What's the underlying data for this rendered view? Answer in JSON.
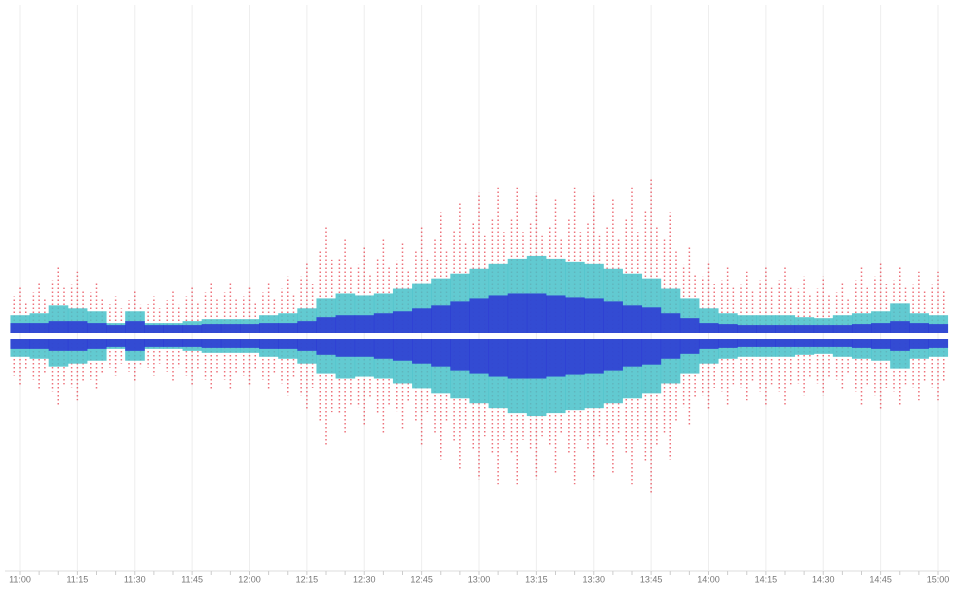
{
  "chart_data": {
    "type": "mirrored-columns",
    "categories": [
      "11:00",
      null,
      null,
      "11:15",
      null,
      null,
      "11:30",
      null,
      null,
      "11:45",
      null,
      null,
      "12:00",
      null,
      null,
      "12:15",
      null,
      null,
      "12:30",
      null,
      null,
      "12:45",
      null,
      null,
      "13:00",
      null,
      null,
      "13:15",
      null,
      null,
      "13:30",
      null,
      null,
      "13:45",
      null,
      null,
      "14:00",
      null,
      null,
      "14:15",
      null,
      null,
      "14:30",
      null,
      null,
      "14:45",
      null,
      null,
      "15:00"
    ],
    "series": [
      {
        "color": "#e8434f",
        "style": "dots",
        "values": [
          50,
          55,
          70,
          65,
          55,
          40,
          45,
          40,
          45,
          50,
          55,
          55,
          50,
          55,
          60,
          75,
          110,
          100,
          90,
          100,
          95,
          110,
          125,
          135,
          145,
          150,
          150,
          145,
          140,
          150,
          145,
          140,
          150,
          160,
          125,
          90,
          75,
          70,
          65,
          70,
          70,
          60,
          60,
          55,
          70,
          75,
          70,
          65,
          65
        ]
      },
      {
        "color": "#46c1c9",
        "style": "band",
        "values": [
          18,
          20,
          28,
          25,
          22,
          10,
          22,
          10,
          10,
          12,
          14,
          14,
          14,
          18,
          20,
          25,
          35,
          40,
          38,
          40,
          45,
          50,
          55,
          60,
          65,
          70,
          75,
          78,
          75,
          72,
          70,
          65,
          60,
          55,
          45,
          35,
          25,
          20,
          18,
          18,
          18,
          16,
          15,
          18,
          20,
          22,
          30,
          20,
          18
        ]
      },
      {
        "color": "#2c35d4",
        "style": "band",
        "values": [
          10,
          10,
          12,
          12,
          10,
          8,
          12,
          8,
          8,
          8,
          9,
          9,
          9,
          10,
          10,
          12,
          16,
          18,
          18,
          20,
          22,
          25,
          28,
          32,
          35,
          38,
          40,
          40,
          38,
          36,
          35,
          32,
          28,
          26,
          20,
          15,
          10,
          9,
          8,
          8,
          8,
          8,
          8,
          8,
          9,
          10,
          12,
          10,
          9
        ]
      }
    ],
    "ylim": [
      0,
      170
    ],
    "grid": true
  }
}
